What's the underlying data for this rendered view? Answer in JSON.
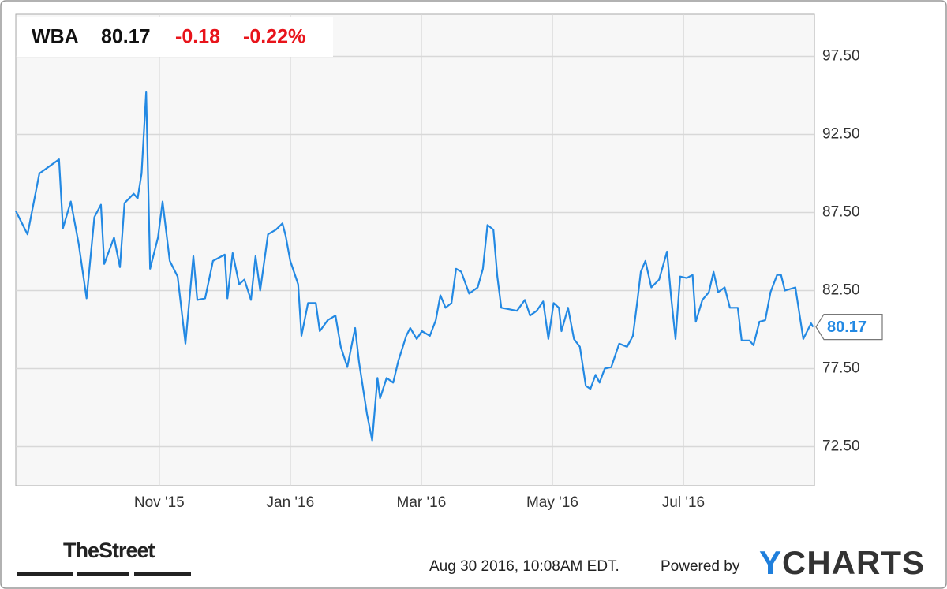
{
  "chart_data": {
    "type": "line",
    "header": {
      "ticker": "WBA",
      "change": -0.18,
      "change_pct": {
        "value": -0.22,
        "label": "-0.22%"
      }
    },
    "x": [
      8.81,
      8.99,
      9.17,
      9.47,
      9.53,
      9.65,
      9.77,
      9.89,
      10.01,
      10.11,
      10.16,
      10.31,
      10.4,
      10.47,
      10.61,
      10.67,
      10.73,
      10.8,
      10.86,
      10.98,
      11.05,
      11.16,
      11.28,
      11.4,
      11.52,
      11.58,
      11.7,
      11.82,
      12.0,
      12.04,
      12.12,
      12.22,
      12.3,
      12.4,
      12.47,
      12.54,
      12.66,
      12.78,
      12.88,
      12.93,
      13.0,
      13.12,
      13.17,
      13.27,
      13.39,
      13.45,
      13.57,
      13.69,
      13.77,
      13.87,
      13.99,
      14.05,
      14.17,
      14.25,
      14.33,
      14.37,
      14.47,
      14.57,
      14.65,
      14.77,
      14.83,
      14.93,
      15.01,
      15.13,
      15.22,
      15.29,
      15.37,
      15.46,
      15.53,
      15.61,
      15.73,
      15.86,
      15.94,
      16.01,
      16.1,
      16.16,
      16.22,
      16.34,
      16.46,
      16.58,
      16.66,
      16.76,
      16.86,
      16.94,
      17.02,
      17.1,
      17.14,
      17.24,
      17.33,
      17.42,
      17.51,
      17.58,
      17.66,
      17.72,
      17.8,
      17.9,
      18.02,
      18.14,
      18.23,
      18.3,
      18.35,
      18.42,
      18.51,
      18.63,
      18.75,
      18.81,
      18.88,
      18.95,
      19.05,
      19.14,
      19.19,
      19.29,
      19.39,
      19.46,
      19.53,
      19.63,
      19.71,
      19.83,
      19.89,
      20.01,
      20.07,
      20.16,
      20.25,
      20.33,
      20.43,
      20.49,
      20.55,
      20.71,
      20.83,
      20.95,
      20.98
    ],
    "values": [
      87.6,
      86.1,
      90.0,
      90.9,
      86.5,
      88.2,
      85.5,
      82.0,
      87.2,
      88.0,
      84.2,
      85.9,
      84.0,
      88.1,
      88.7,
      88.4,
      90.0,
      95.2,
      83.9,
      85.9,
      88.2,
      84.4,
      83.4,
      79.1,
      84.7,
      81.9,
      82.0,
      84.4,
      84.8,
      82.0,
      84.9,
      82.9,
      83.2,
      81.9,
      84.7,
      82.5,
      86.1,
      86.4,
      86.8,
      86.0,
      84.4,
      82.9,
      79.6,
      81.7,
      81.7,
      79.9,
      80.6,
      80.9,
      78.9,
      77.6,
      80.1,
      77.9,
      74.6,
      72.9,
      76.9,
      75.6,
      76.9,
      76.6,
      78.0,
      79.6,
      80.1,
      79.4,
      79.9,
      79.6,
      80.6,
      82.2,
      81.4,
      81.7,
      83.9,
      83.7,
      82.3,
      82.7,
      83.9,
      86.7,
      86.4,
      83.4,
      81.4,
      81.3,
      81.2,
      81.9,
      80.9,
      81.2,
      81.8,
      79.4,
      81.7,
      81.4,
      79.9,
      81.4,
      79.4,
      78.9,
      76.4,
      76.2,
      77.1,
      76.6,
      77.5,
      77.6,
      79.1,
      78.9,
      79.6,
      81.9,
      83.7,
      84.4,
      82.7,
      83.2,
      85.0,
      82.2,
      79.4,
      83.4,
      83.3,
      83.5,
      80.5,
      81.9,
      82.4,
      83.7,
      82.4,
      82.7,
      81.4,
      81.4,
      79.3,
      79.3,
      79.0,
      80.5,
      80.6,
      82.4,
      83.5,
      83.5,
      82.5,
      82.7,
      79.4,
      80.4,
      80.17
    ],
    "color": "#2389e3",
    "xlim": [
      8.81,
      21.0
    ],
    "xticks": [
      {
        "value": 11,
        "label": "Nov '15"
      },
      {
        "value": 13,
        "label": "Jan '16"
      },
      {
        "value": 15,
        "label": "Mar '16"
      },
      {
        "value": 17,
        "label": "May '16"
      },
      {
        "value": 19,
        "label": "Jul '16"
      }
    ],
    "ylim": [
      70,
      100.2
    ],
    "yticks": [
      {
        "value": 72.5,
        "label": "72.50"
      },
      {
        "value": 77.5,
        "label": "77.50"
      },
      {
        "value": 82.5,
        "label": "82.50"
      },
      {
        "value": 87.5,
        "label": "87.50"
      },
      {
        "value": 92.5,
        "label": "92.50"
      },
      {
        "value": 97.5,
        "label": "97.50"
      }
    ],
    "grid": true,
    "footer": {
      "source": "TheStreet",
      "timestamp": "Aug 30 2016, 10:08AM EDT.",
      "powered_by": "Powered by",
      "brand": "YCHARTS"
    }
  }
}
